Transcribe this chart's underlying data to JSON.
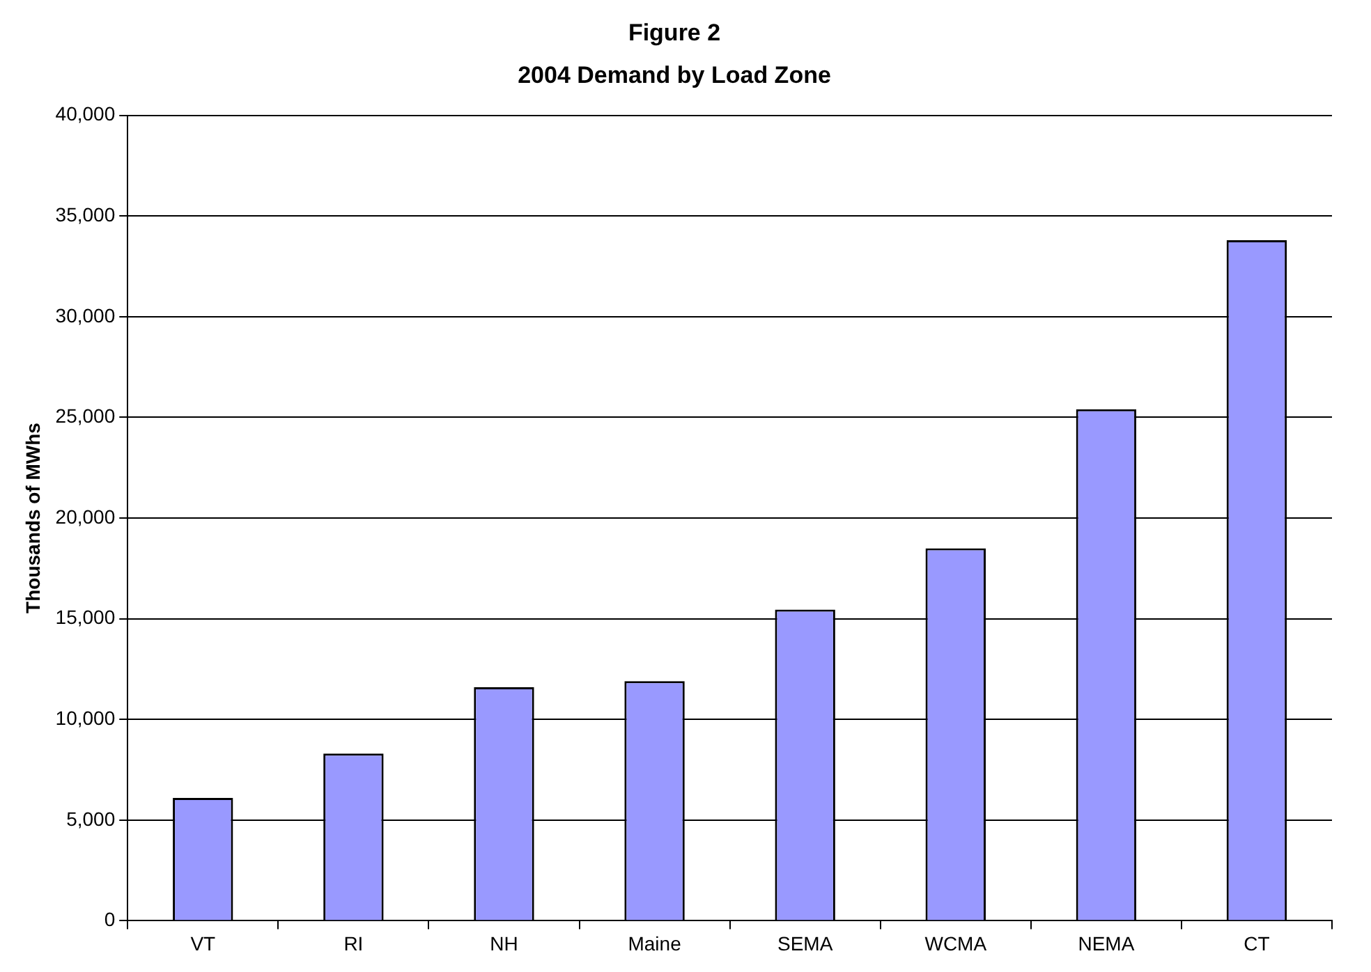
{
  "chart_data": {
    "type": "bar",
    "title": "Figure 2",
    "subtitle": "2004 Demand by Load Zone",
    "ylabel": "Thousands of MWhs",
    "categories": [
      "VT",
      "RI",
      "NH",
      "Maine",
      "SEMA",
      "WCMA",
      "NEMA",
      "CT"
    ],
    "values": [
      6100,
      8300,
      11600,
      11900,
      15450,
      18500,
      25400,
      33800
    ],
    "color": "#9999ff",
    "ylim": [
      0,
      40000
    ],
    "yticks": [
      0,
      {
        "value": 5000,
        "label": "5,000"
      },
      {
        "value": 10000,
        "label": "10,000"
      },
      {
        "value": 15000,
        "label": "15,000"
      },
      {
        "value": 20000,
        "label": "20,000"
      },
      {
        "value": 25000,
        "label": "25,000"
      },
      {
        "value": 30000,
        "label": "30,000"
      },
      {
        "value": 35000,
        "label": "35,000"
      },
      {
        "value": 40000,
        "label": "40,000"
      }
    ],
    "grid": "y",
    "legend": false
  }
}
